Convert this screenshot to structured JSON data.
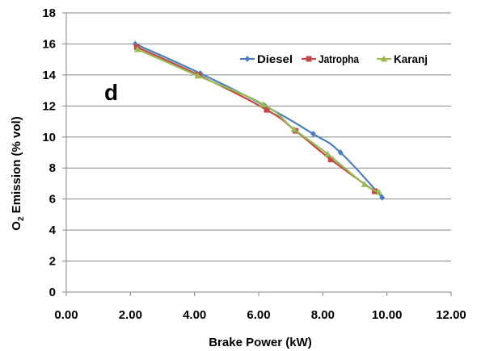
{
  "chart_data": {
    "type": "line",
    "xlabel": "Brake Power (kW)",
    "ylabel": {
      "main": "O",
      "sub": "2",
      "rest": " Emission (% vol)"
    },
    "xlim": [
      0,
      12
    ],
    "ylim": [
      0,
      18
    ],
    "xticks": [
      "0.00",
      "2.00",
      "4.00",
      "6.00",
      "8.00",
      "10.00",
      "12.00"
    ],
    "yticks": [
      "0",
      "2",
      "4",
      "6",
      "8",
      "10",
      "12",
      "14",
      "16",
      "18"
    ],
    "grid": "horizontal",
    "legend_position": "top-right",
    "annotation": "d",
    "series": [
      {
        "name": "Diesel",
        "color": "#4a7ebb",
        "marker": "diamond",
        "x": [
          2.15,
          4.18,
          6.2,
          7.7,
          8.55,
          9.85
        ],
        "y": [
          16.0,
          14.1,
          12.0,
          10.2,
          9.0,
          6.1
        ]
      },
      {
        "name": "Jatropha",
        "color": "#be4b48",
        "marker": "square",
        "x": [
          2.2,
          4.12,
          6.25,
          7.15,
          8.25,
          9.62
        ],
        "y": [
          15.8,
          14.0,
          11.75,
          10.4,
          8.55,
          6.5
        ]
      },
      {
        "name": "Karanj",
        "color": "#98b954",
        "marker": "triangle",
        "x": [
          2.22,
          4.1,
          6.15,
          7.1,
          8.15,
          9.3,
          9.75
        ],
        "y": [
          15.65,
          13.95,
          12.1,
          10.5,
          8.9,
          6.95,
          6.45
        ]
      }
    ]
  }
}
